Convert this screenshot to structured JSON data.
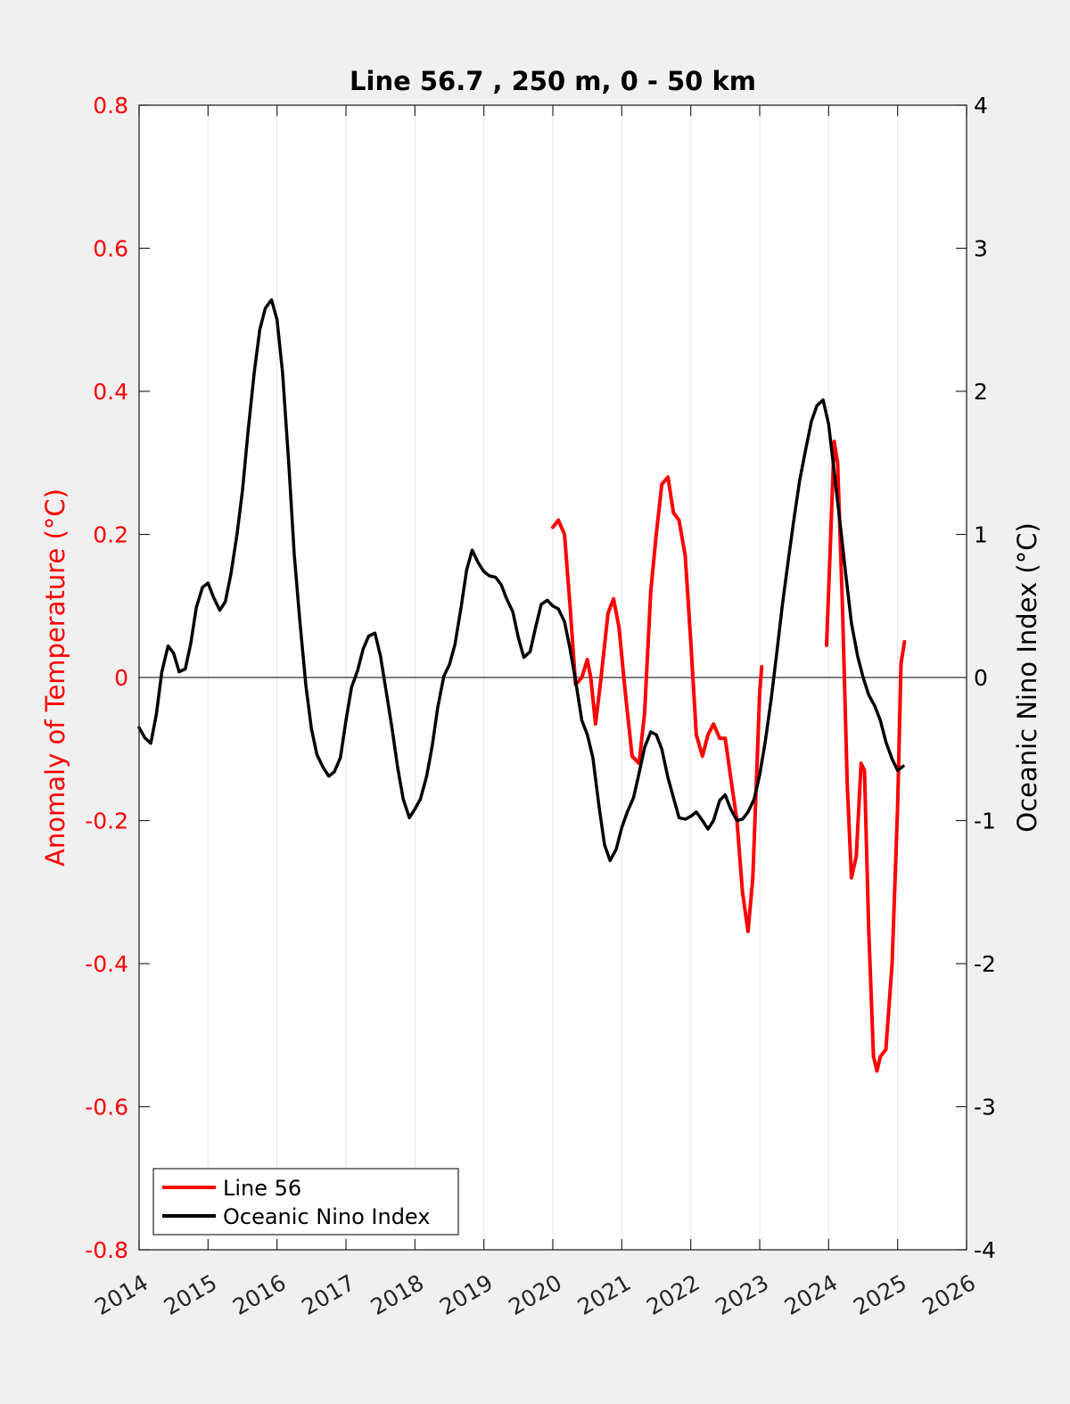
{
  "chart_data": {
    "type": "line",
    "title": "Line 56.7 , 250 m, 0 - 50 km",
    "xlabel": "",
    "ylabel_left": "Anomaly of Temperature (°C)",
    "ylabel_right": "Oceanic Nino Index (°C)",
    "xlim": [
      2014,
      2026
    ],
    "ylim_left": [
      -0.8,
      0.8
    ],
    "ylim_right": [
      -4,
      4
    ],
    "x_ticks": [
      2014,
      2015,
      2016,
      2017,
      2018,
      2019,
      2020,
      2021,
      2022,
      2023,
      2024,
      2025,
      2026
    ],
    "x_tick_labels": [
      "2014",
      "2015",
      "2016",
      "2017",
      "2018",
      "2019",
      "2020",
      "2021",
      "2022",
      "2023",
      "2024",
      "2025",
      "2026"
    ],
    "y_left_ticks": [
      -0.8,
      -0.6,
      -0.4,
      -0.2,
      0,
      0.2,
      0.4,
      0.6,
      0.8
    ],
    "y_left_tick_labels": [
      "-0.8",
      "-0.6",
      "-0.4",
      "-0.2",
      "0",
      "0.2",
      "0.4",
      "0.6",
      "0.8"
    ],
    "y_right_ticks": [
      -4,
      -3,
      -2,
      -1,
      0,
      1,
      2,
      3,
      4
    ],
    "y_right_tick_labels": [
      "-4",
      "-3",
      "-2",
      "-1",
      "0",
      "1",
      "2",
      "3",
      "4"
    ],
    "grid": "vertical",
    "zero_line": true,
    "legend_placement": "bottom-left",
    "colors": {
      "line56": "#ff0000",
      "oni": "#000000",
      "left_axis": "#ff0000",
      "right_axis": "#000000"
    },
    "series": [
      {
        "name": "Line 56",
        "axis": "left",
        "color": "#ff0000",
        "segments": [
          [
            [
              2020.0,
              0.21
            ],
            [
              2020.08,
              0.22
            ],
            [
              2020.17,
              0.2
            ],
            [
              2020.25,
              0.1
            ],
            [
              2020.33,
              -0.01
            ],
            [
              2020.42,
              0.0
            ],
            [
              2020.5,
              0.025
            ],
            [
              2020.55,
              0.0
            ],
            [
              2020.62,
              -0.065
            ],
            [
              2020.7,
              0.0
            ],
            [
              2020.8,
              0.09
            ],
            [
              2020.88,
              0.11
            ],
            [
              2020.96,
              0.07
            ],
            [
              2021.05,
              -0.02
            ],
            [
              2021.15,
              -0.11
            ],
            [
              2021.25,
              -0.12
            ],
            [
              2021.33,
              -0.05
            ],
            [
              2021.42,
              0.12
            ],
            [
              2021.5,
              0.2
            ],
            [
              2021.58,
              0.27
            ],
            [
              2021.67,
              0.28
            ],
            [
              2021.75,
              0.23
            ],
            [
              2021.83,
              0.22
            ],
            [
              2021.92,
              0.17
            ],
            [
              2022.0,
              0.05
            ],
            [
              2022.08,
              -0.08
            ],
            [
              2022.17,
              -0.11
            ],
            [
              2022.25,
              -0.08
            ],
            [
              2022.33,
              -0.065
            ],
            [
              2022.42,
              -0.085
            ],
            [
              2022.5,
              -0.085
            ],
            [
              2022.58,
              -0.14
            ],
            [
              2022.67,
              -0.2
            ],
            [
              2022.75,
              -0.3
            ],
            [
              2022.83,
              -0.355
            ],
            [
              2022.9,
              -0.28
            ],
            [
              2023.0,
              -0.02
            ],
            [
              2023.03,
              0.015
            ]
          ],
          [
            [
              2023.97,
              0.045
            ],
            [
              2024.03,
              0.2
            ],
            [
              2024.08,
              0.33
            ],
            [
              2024.13,
              0.3
            ],
            [
              2024.2,
              0.1
            ],
            [
              2024.27,
              -0.15
            ],
            [
              2024.33,
              -0.28
            ],
            [
              2024.4,
              -0.25
            ],
            [
              2024.47,
              -0.12
            ],
            [
              2024.52,
              -0.13
            ],
            [
              2024.58,
              -0.35
            ],
            [
              2024.65,
              -0.53
            ],
            [
              2024.7,
              -0.55
            ],
            [
              2024.75,
              -0.53
            ],
            [
              2024.83,
              -0.52
            ],
            [
              2024.92,
              -0.4
            ],
            [
              2025.0,
              -0.18
            ],
            [
              2025.05,
              0.02
            ],
            [
              2025.1,
              0.05
            ]
          ]
        ]
      },
      {
        "name": "Oceanic Nino Index",
        "axis": "right",
        "color": "#000000",
        "x": [
          2014.0,
          2014.08,
          2014.17,
          2014.25,
          2014.33,
          2014.42,
          2014.5,
          2014.58,
          2014.67,
          2014.75,
          2014.83,
          2014.92,
          2015.0,
          2015.08,
          2015.17,
          2015.25,
          2015.33,
          2015.42,
          2015.5,
          2015.58,
          2015.67,
          2015.75,
          2015.83,
          2015.92,
          2016.0,
          2016.08,
          2016.17,
          2016.25,
          2016.33,
          2016.42,
          2016.5,
          2016.58,
          2016.67,
          2016.75,
          2016.83,
          2016.92,
          2017.0,
          2017.08,
          2017.17,
          2017.25,
          2017.33,
          2017.42,
          2017.5,
          2017.58,
          2017.67,
          2017.75,
          2017.83,
          2017.92,
          2018.0,
          2018.08,
          2018.17,
          2018.25,
          2018.33,
          2018.42,
          2018.5,
          2018.58,
          2018.67,
          2018.75,
          2018.83,
          2018.92,
          2019.0,
          2019.08,
          2019.17,
          2019.25,
          2019.33,
          2019.42,
          2019.5,
          2019.58,
          2019.67,
          2019.75,
          2019.83,
          2019.92,
          2020.0,
          2020.08,
          2020.17,
          2020.25,
          2020.33,
          2020.42,
          2020.5,
          2020.58,
          2020.67,
          2020.75,
          2020.83,
          2020.92,
          2021.0,
          2021.08,
          2021.17,
          2021.25,
          2021.33,
          2021.42,
          2021.5,
          2021.58,
          2021.67,
          2021.75,
          2021.83,
          2021.92,
          2022.0,
          2022.08,
          2022.17,
          2022.25,
          2022.33,
          2022.42,
          2022.5,
          2022.58,
          2022.67,
          2022.75,
          2022.83,
          2022.92,
          2023.0,
          2023.08,
          2023.17,
          2023.25,
          2023.33,
          2023.42,
          2023.5,
          2023.58,
          2023.67,
          2023.75,
          2023.83,
          2023.92,
          2024.0,
          2024.08,
          2024.17,
          2024.25,
          2024.33,
          2024.42,
          2024.5,
          2024.58,
          2024.67,
          2024.75,
          2024.83,
          2024.92,
          2025.0,
          2025.08
        ],
        "values": [
          -0.35,
          -0.42,
          -0.46,
          -0.26,
          0.04,
          0.22,
          0.17,
          0.04,
          0.06,
          0.24,
          0.49,
          0.63,
          0.66,
          0.56,
          0.47,
          0.53,
          0.72,
          1.0,
          1.31,
          1.72,
          2.13,
          2.43,
          2.58,
          2.64,
          2.5,
          2.13,
          1.5,
          0.86,
          0.4,
          -0.06,
          -0.36,
          -0.54,
          -0.63,
          -0.69,
          -0.66,
          -0.56,
          -0.3,
          -0.07,
          0.05,
          0.2,
          0.29,
          0.31,
          0.15,
          -0.09,
          -0.36,
          -0.63,
          -0.85,
          -0.98,
          -0.92,
          -0.85,
          -0.69,
          -0.48,
          -0.21,
          0.01,
          0.09,
          0.23,
          0.49,
          0.75,
          0.89,
          0.8,
          0.74,
          0.71,
          0.7,
          0.65,
          0.55,
          0.46,
          0.28,
          0.14,
          0.18,
          0.35,
          0.51,
          0.54,
          0.5,
          0.48,
          0.39,
          0.2,
          -0.02,
          -0.3,
          -0.4,
          -0.56,
          -0.9,
          -1.17,
          -1.28,
          -1.2,
          -1.05,
          -0.94,
          -0.84,
          -0.67,
          -0.49,
          -0.38,
          -0.4,
          -0.5,
          -0.7,
          -0.84,
          -0.98,
          -0.99,
          -0.97,
          -0.94,
          -1.0,
          -1.06,
          -1.0,
          -0.86,
          -0.82,
          -0.92,
          -1.0,
          -0.99,
          -0.94,
          -0.85,
          -0.68,
          -0.45,
          -0.14,
          0.18,
          0.51,
          0.84,
          1.12,
          1.38,
          1.6,
          1.79,
          1.9,
          1.94,
          1.77,
          1.44,
          1.06,
          0.71,
          0.38,
          0.15,
          0.0,
          -0.12,
          -0.2,
          -0.3,
          -0.45,
          -0.57,
          -0.65,
          -0.62
        ]
      }
    ]
  },
  "legend": {
    "items": [
      {
        "label": "Line 56",
        "color": "#ff0000"
      },
      {
        "label": "Oceanic Nino Index",
        "color": "#000000"
      }
    ]
  }
}
